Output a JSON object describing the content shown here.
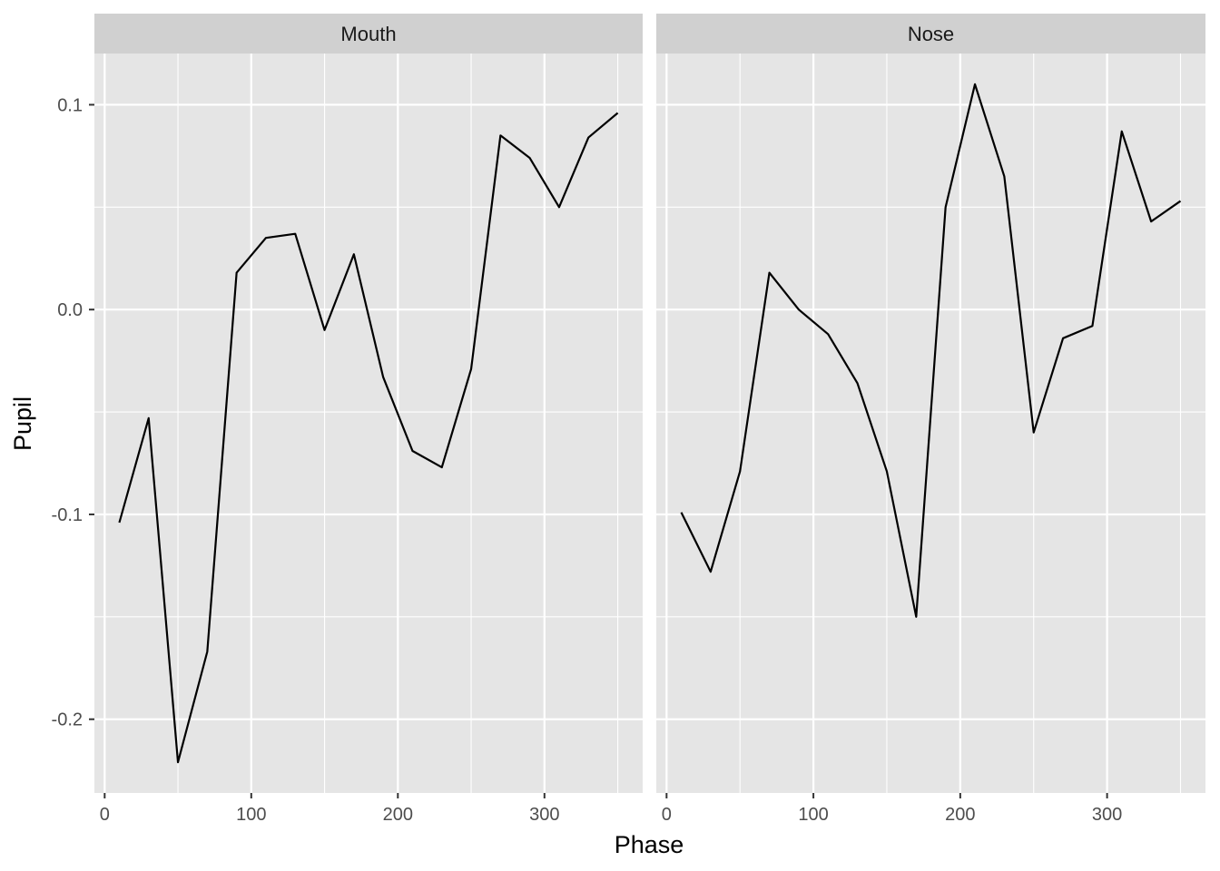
{
  "chart_data": {
    "type": "line",
    "xlabel": "Phase",
    "ylabel": "Pupil",
    "xlim": [
      -7,
      367
    ],
    "ylim": [
      -0.236,
      0.125
    ],
    "x_ticks": [
      0,
      100,
      200,
      300
    ],
    "x_tick_labels": [
      "0",
      "100",
      "200",
      "300"
    ],
    "y_ticks": [
      -0.2,
      -0.1,
      0.0,
      0.1
    ],
    "y_tick_labels": [
      "-0.2",
      "-0.1",
      "0.0",
      "0.1"
    ],
    "grid": true,
    "x": [
      10,
      30,
      50,
      70,
      90,
      110,
      130,
      150,
      170,
      190,
      210,
      230,
      250,
      270,
      290,
      310,
      330,
      350
    ],
    "facets": [
      {
        "label": "Mouth",
        "values": [
          -0.104,
          -0.053,
          -0.221,
          -0.167,
          0.018,
          0.035,
          0.037,
          -0.01,
          0.027,
          -0.033,
          -0.069,
          -0.077,
          -0.029,
          0.085,
          0.074,
          0.05,
          0.084,
          0.096
        ]
      },
      {
        "label": "Nose",
        "values": [
          -0.099,
          -0.128,
          -0.079,
          0.018,
          0.0,
          -0.012,
          -0.036,
          -0.079,
          -0.15,
          0.05,
          0.11,
          0.065,
          -0.06,
          -0.014,
          -0.008,
          0.087,
          0.043,
          0.053
        ]
      }
    ],
    "colors": {
      "panel_bg": "#e5e5e5",
      "strip_bg": "#d0d0d0",
      "grid": "#ffffff",
      "line": "#000000",
      "tick": "#333333"
    }
  }
}
